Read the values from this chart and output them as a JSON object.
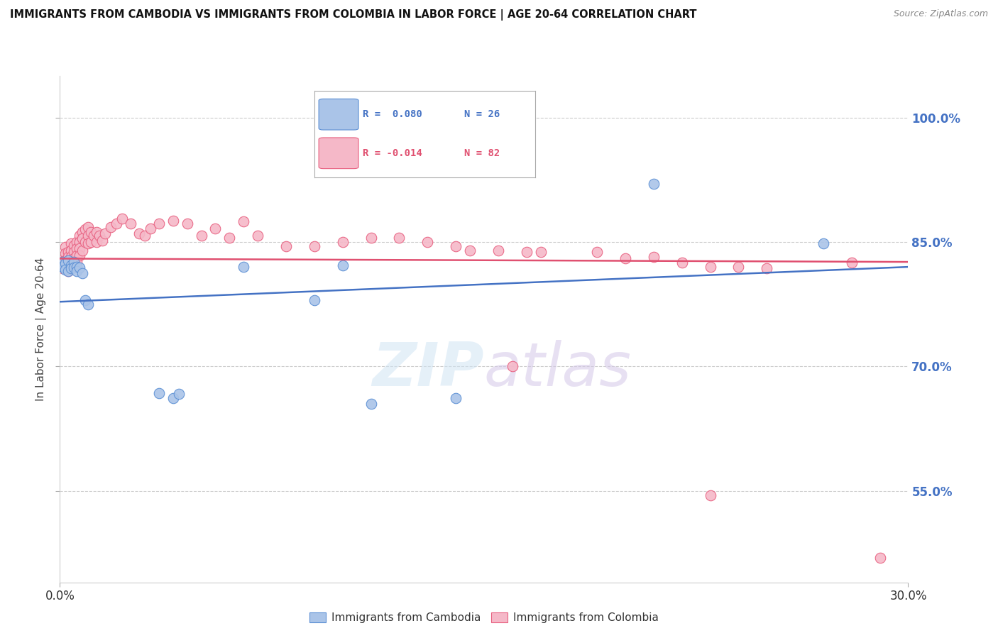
{
  "title": "IMMIGRANTS FROM CAMBODIA VS IMMIGRANTS FROM COLOMBIA IN LABOR FORCE | AGE 20-64 CORRELATION CHART",
  "source": "Source: ZipAtlas.com",
  "ylabel": "In Labor Force | Age 20-64",
  "xlim": [
    0.0,
    0.3
  ],
  "ylim": [
    0.44,
    1.05
  ],
  "yticks": [
    0.55,
    0.7,
    0.85,
    1.0
  ],
  "ytick_labels": [
    "55.0%",
    "70.0%",
    "85.0%",
    "100.0%"
  ],
  "xticks": [
    0.0,
    0.3
  ],
  "xtick_labels": [
    "0.0%",
    "30.0%"
  ],
  "watermark_text": "ZIPatlas",
  "cambodia_color": "#aac4e8",
  "colombia_color": "#f5b8c8",
  "cambodia_edge_color": "#5b8fd4",
  "colombia_edge_color": "#e86080",
  "cambodia_line_color": "#4472c4",
  "colombia_line_color": "#e05070",
  "right_tick_color": "#4472c4",
  "grid_color": "#cccccc",
  "background_color": "#ffffff",
  "legend_r_cam": "R =  0.080",
  "legend_n_cam": "N = 26",
  "legend_r_col": "R = -0.014",
  "legend_n_col": "N = 82",
  "cambodia_x": [
    0.001,
    0.001,
    0.002,
    0.002,
    0.003,
    0.003,
    0.004,
    0.004,
    0.005,
    0.005,
    0.006,
    0.006,
    0.007,
    0.008,
    0.009,
    0.01,
    0.035,
    0.04,
    0.042,
    0.065,
    0.09,
    0.1,
    0.11,
    0.14,
    0.21,
    0.27
  ],
  "cambodia_y": [
    0.826,
    0.82,
    0.824,
    0.817,
    0.828,
    0.815,
    0.822,
    0.818,
    0.826,
    0.819,
    0.82,
    0.815,
    0.819,
    0.812,
    0.78,
    0.775,
    0.668,
    0.662,
    0.667,
    0.82,
    0.78,
    0.822,
    0.655,
    0.662,
    0.92,
    0.848
  ],
  "colombia_x": [
    0.001,
    0.001,
    0.001,
    0.002,
    0.002,
    0.002,
    0.002,
    0.003,
    0.003,
    0.003,
    0.003,
    0.003,
    0.004,
    0.004,
    0.004,
    0.004,
    0.004,
    0.005,
    0.005,
    0.005,
    0.005,
    0.006,
    0.006,
    0.006,
    0.006,
    0.007,
    0.007,
    0.007,
    0.007,
    0.008,
    0.008,
    0.008,
    0.009,
    0.009,
    0.01,
    0.01,
    0.01,
    0.011,
    0.011,
    0.012,
    0.013,
    0.013,
    0.014,
    0.015,
    0.016,
    0.018,
    0.02,
    0.022,
    0.025,
    0.028,
    0.03,
    0.032,
    0.035,
    0.04,
    0.045,
    0.05,
    0.055,
    0.06,
    0.065,
    0.07,
    0.08,
    0.09,
    0.1,
    0.11,
    0.12,
    0.13,
    0.14,
    0.155,
    0.17,
    0.19,
    0.21,
    0.23,
    0.25,
    0.145,
    0.165,
    0.2,
    0.22,
    0.24,
    0.16,
    0.23,
    0.28,
    0.29
  ],
  "colombia_y": [
    0.832,
    0.826,
    0.818,
    0.844,
    0.836,
    0.828,
    0.82,
    0.838,
    0.832,
    0.826,
    0.82,
    0.815,
    0.848,
    0.84,
    0.832,
    0.826,
    0.818,
    0.846,
    0.838,
    0.83,
    0.822,
    0.85,
    0.842,
    0.834,
    0.826,
    0.858,
    0.85,
    0.842,
    0.834,
    0.862,
    0.854,
    0.84,
    0.865,
    0.85,
    0.868,
    0.858,
    0.848,
    0.862,
    0.85,
    0.858,
    0.862,
    0.85,
    0.858,
    0.852,
    0.86,
    0.868,
    0.872,
    0.878,
    0.872,
    0.86,
    0.858,
    0.866,
    0.872,
    0.876,
    0.872,
    0.858,
    0.866,
    0.855,
    0.875,
    0.858,
    0.845,
    0.845,
    0.85,
    0.855,
    0.855,
    0.85,
    0.845,
    0.84,
    0.838,
    0.838,
    0.832,
    0.82,
    0.818,
    0.84,
    0.838,
    0.83,
    0.825,
    0.82,
    0.7,
    0.545,
    0.825,
    0.47
  ]
}
